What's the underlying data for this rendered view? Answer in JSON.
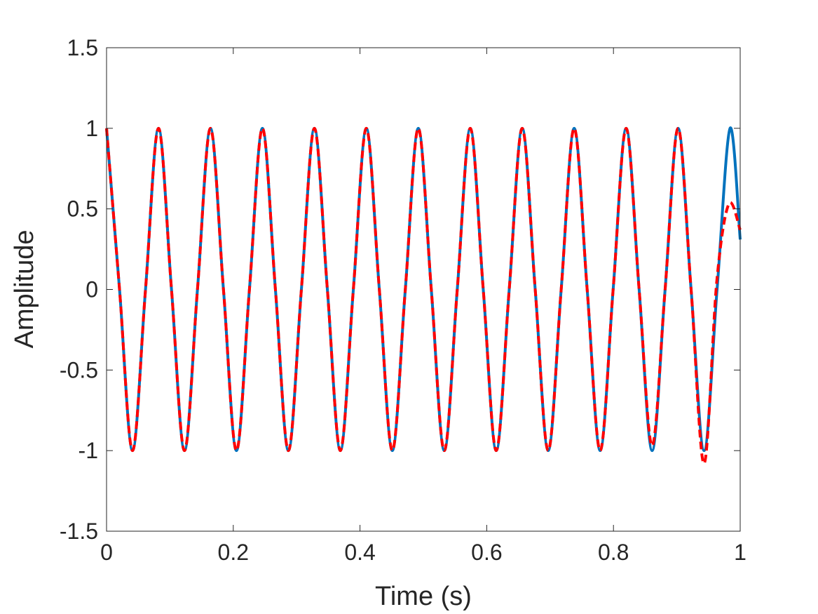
{
  "chart_data": {
    "type": "line",
    "title": "",
    "xlabel": "Time (s)",
    "ylabel": "Amplitude",
    "xlim": [
      0,
      1
    ],
    "ylim": [
      -1.5,
      1.5
    ],
    "xticks": [
      0,
      0.2,
      0.4,
      0.6,
      0.8,
      1
    ],
    "xtick_labels": [
      "0",
      "0.2",
      "0.4",
      "0.6",
      "0.8",
      "1"
    ],
    "yticks": [
      -1.5,
      -1,
      -0.5,
      0,
      0.5,
      1,
      1.5
    ],
    "ytick_labels": [
      "-1.5",
      "-1",
      "-0.5",
      "0",
      "0.5",
      "1",
      "1.5"
    ],
    "grid": false,
    "legend": "none",
    "series": [
      {
        "color": "#0072BD",
        "style": "solid",
        "x": [
          0,
          0.0205,
          0.041,
          0.0615,
          0.082,
          0.1025,
          0.123,
          0.1435,
          0.164,
          0.1845,
          0.205,
          0.2255,
          0.246,
          0.2665,
          0.287,
          0.3075,
          0.328,
          0.3485,
          0.369,
          0.3895,
          0.41,
          0.4305,
          0.451,
          0.4715,
          0.492,
          0.5125,
          0.533,
          0.5535,
          0.574,
          0.5945,
          0.615,
          0.6355,
          0.656,
          0.6765,
          0.697,
          0.7175,
          0.738,
          0.7585,
          0.779,
          0.7995,
          0.82,
          0.8405,
          0.861,
          0.8815,
          0.902,
          0.9225,
          0.943,
          0.9635,
          0.984,
          1.0
        ],
        "y": [
          1,
          0,
          -1,
          0,
          1,
          0,
          -1,
          0,
          1,
          0,
          -1,
          0,
          1,
          0,
          -1,
          0,
          1,
          0,
          -1,
          0,
          1,
          0,
          -1,
          0,
          1,
          0,
          -1,
          0,
          1,
          0,
          -1,
          0,
          1,
          0,
          -1,
          0,
          1,
          0,
          -1,
          0,
          1,
          0,
          -1,
          0,
          1,
          0,
          -1,
          0,
          1,
          0.31
        ]
      },
      {
        "color": "#FF0000",
        "style": "dashed",
        "x": [
          0,
          0.0205,
          0.041,
          0.0615,
          0.082,
          0.1025,
          0.123,
          0.1435,
          0.164,
          0.1845,
          0.205,
          0.2255,
          0.246,
          0.2665,
          0.287,
          0.3075,
          0.328,
          0.3485,
          0.369,
          0.3895,
          0.41,
          0.4305,
          0.451,
          0.4715,
          0.492,
          0.5125,
          0.533,
          0.5535,
          0.574,
          0.5945,
          0.615,
          0.6355,
          0.656,
          0.6765,
          0.697,
          0.7175,
          0.738,
          0.7585,
          0.779,
          0.7995,
          0.82,
          0.8405,
          0.861,
          0.8815,
          0.902,
          0.9225,
          0.943,
          0.963,
          0.982,
          1.0
        ],
        "y": [
          1,
          0,
          -1,
          0,
          1,
          0,
          -1,
          0,
          1,
          0,
          -1,
          0,
          1,
          0,
          -1,
          0,
          1,
          0,
          -1,
          0,
          1,
          0,
          -1,
          0,
          1,
          0,
          -1,
          0,
          1,
          0,
          -1,
          0,
          1,
          0,
          -1,
          0,
          1,
          0,
          -1,
          0,
          1,
          0,
          -0.97,
          0,
          1,
          0,
          -1.08,
          0.05,
          0.53,
          0.37
        ]
      }
    ]
  }
}
